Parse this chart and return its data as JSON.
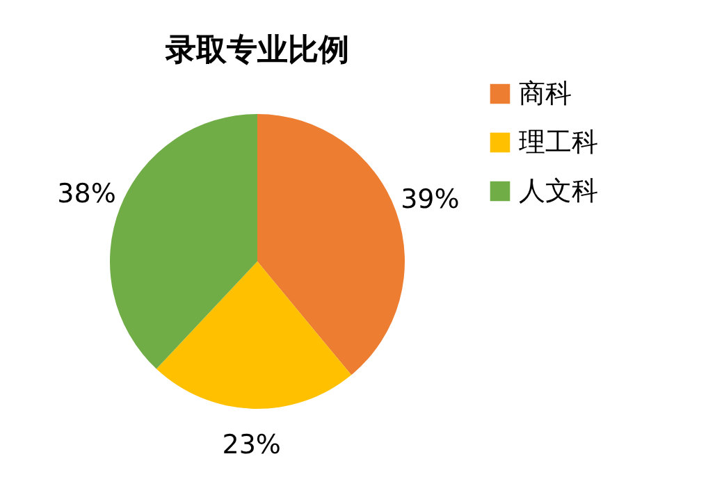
{
  "chart_data": {
    "type": "pie",
    "title": "录取专业比例",
    "categories": [
      "商科",
      "理工科",
      "人文科"
    ],
    "values": [
      39,
      23,
      38
    ],
    "colors": [
      "#ed7d31",
      "#ffc000",
      "#70ad47"
    ],
    "value_labels": [
      "39%",
      "23%",
      "38%"
    ],
    "legend": "right"
  }
}
